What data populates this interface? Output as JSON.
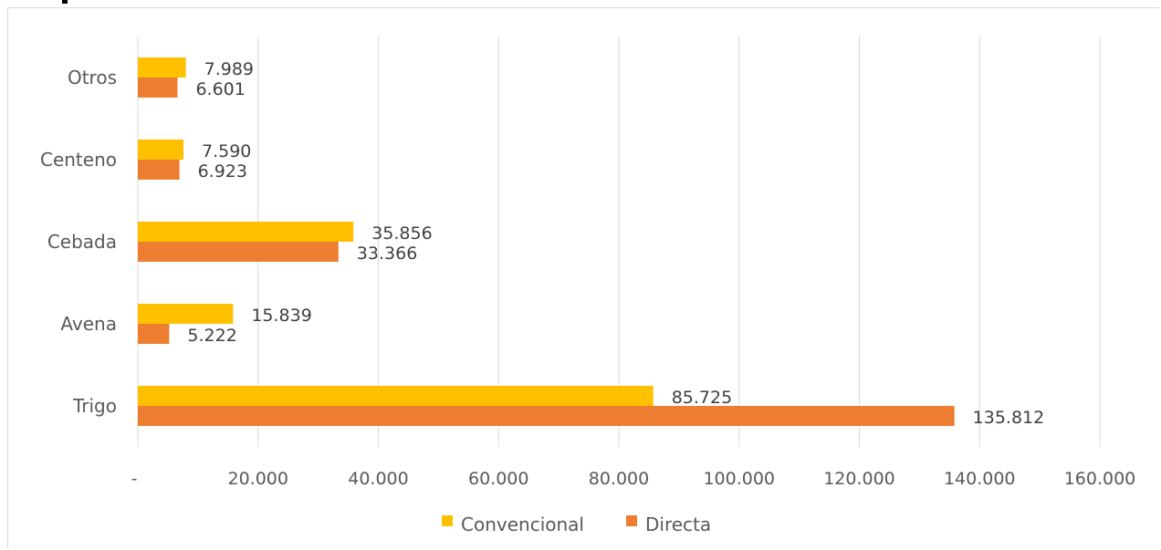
{
  "chart_data": {
    "type": "bar",
    "orientation": "horizontal",
    "categories": [
      "Trigo",
      "Avena",
      "Cebada",
      "Centeno",
      "Otros"
    ],
    "series": [
      {
        "name": "Convencional",
        "values": [
          85725,
          15839,
          35856,
          7590,
          7989
        ],
        "labels": [
          "85.725",
          "15.839",
          "35.856",
          "7.590",
          "7.989"
        ],
        "color": "#FFC000"
      },
      {
        "name": "Directa",
        "values": [
          135812,
          5222,
          33366,
          6923,
          6601
        ],
        "labels": [
          "135.812",
          "5.222",
          "33.366",
          "6.923",
          "6.601"
        ],
        "color": "#ED7D31"
      }
    ],
    "xlim": [
      0,
      160000
    ],
    "xticks": [
      {
        "value": 0,
        "label": "-"
      },
      {
        "value": 20000,
        "label": "20.000"
      },
      {
        "value": 40000,
        "label": "40.000"
      },
      {
        "value": 60000,
        "label": "60.000"
      },
      {
        "value": 80000,
        "label": "80.000"
      },
      {
        "value": 100000,
        "label": "100.000"
      },
      {
        "value": 120000,
        "label": "120.000"
      },
      {
        "value": 140000,
        "label": "140.000"
      },
      {
        "value": 160000,
        "label": "160.000"
      }
    ],
    "grid": true,
    "legend_position": "bottom"
  }
}
